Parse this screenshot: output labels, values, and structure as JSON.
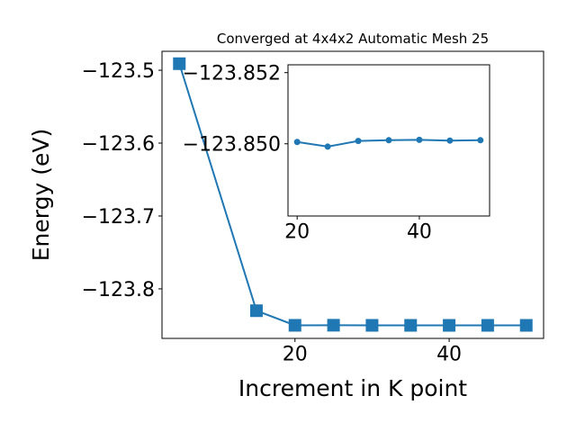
{
  "chart_data": [
    {
      "type": "line",
      "title": "Converged at 4x4x2 Automatic Mesh 25",
      "xlabel": "Increment in K point",
      "ylabel": "Energy (eV)",
      "x": [
        5,
        15,
        20,
        25,
        30,
        35,
        40,
        45,
        50
      ],
      "series": [
        {
          "color": "#1f77b4",
          "marker": "square",
          "values": [
            -123.491,
            -123.83,
            -123.85005,
            -123.84992,
            -123.85008,
            -123.8501,
            -123.85011,
            -123.85009,
            -123.8501
          ]
        }
      ],
      "xlim": [
        2.75,
        52.25
      ],
      "xticks": [
        20,
        40
      ],
      "ylim": [
        -123.868,
        -123.474
      ],
      "yticks": [
        {
          "value": -123.5,
          "label": "−123.5"
        },
        {
          "value": -123.6,
          "label": "−123.6"
        },
        {
          "value": -123.7,
          "label": "−123.7"
        },
        {
          "value": -123.8,
          "label": "−123.8"
        }
      ]
    },
    {
      "type": "line",
      "x": [
        20,
        25,
        30,
        35,
        40,
        45,
        50
      ],
      "series": [
        {
          "color": "#1f77b4",
          "marker": "circle",
          "values": [
            -123.85005,
            -123.84992,
            -123.85008,
            -123.8501,
            -123.85011,
            -123.85009,
            -123.8501
          ]
        }
      ],
      "xlim": [
        18.5,
        51.5
      ],
      "xticks": [
        20,
        40
      ],
      "ylim": [
        -123.84797,
        -123.85222
      ],
      "yticks": [
        {
          "value": -123.852,
          "label": "−123.852"
        },
        {
          "value": -123.85,
          "label": "−123.850"
        }
      ]
    }
  ]
}
